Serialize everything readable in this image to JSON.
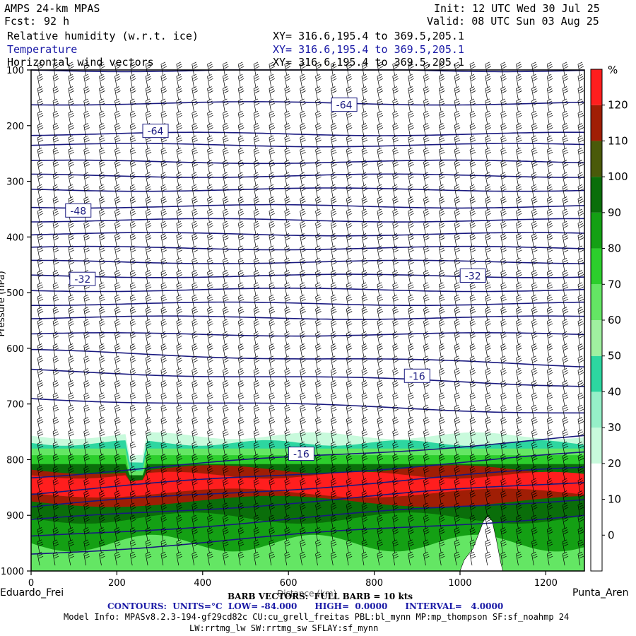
{
  "header": {
    "model": "AMPS 24-km MPAS",
    "fcst_label": "Fcst:",
    "fcst_value": "92 h",
    "init": "Init: 12 UTC Wed 30 Jul 25",
    "valid": "Valid: 08 UTC Sun 03 Aug 25",
    "fields": [
      {
        "name": "Relative humidity (w.r.t. ice)",
        "xy": "XY= 316.6,195.4 to 369.5,205.1",
        "color": "#000000"
      },
      {
        "name": "Temperature",
        "xy": "XY= 316.6,195.4 to 369.5,205.1",
        "color": "#1a1aa6"
      },
      {
        "name": "Horizontal wind vectors",
        "xy": "XY= 316.6,195.4 to 369.5,205.1",
        "color": "#000000"
      }
    ]
  },
  "footer": {
    "barb": "BARB VECTORS:  FULL BARB = 10 kts",
    "x_title": "Distance (km)",
    "contours": "CONTOURS:  UNITS=°C  LOW= -84.000      HIGH=  0.0000      INTERVAL=   4.0000",
    "model_info": "Model Info: MPASv8.2.3-194-gf29cd82c CU:cu_grell_freitas PBL:bl_mynn MP:mp_thompson SF:sf_noahmp 24",
    "model_info2": "LW:rrtmg_lw SW:rrtmg_sw SFLAY:sf_mynn",
    "left_end": "Eduardo_Frei",
    "right_end": "Punta_Aren",
    "y_title": "Pressure (hPa)"
  },
  "colorbar": {
    "unit": "%",
    "levels": [
      0,
      10,
      20,
      30,
      40,
      50,
      60,
      70,
      80,
      90,
      100,
      110,
      120
    ],
    "colors": [
      "#ffffff",
      "#ffffff",
      "#ffffff",
      "#c8fadc",
      "#96f0c8",
      "#2dd6a0",
      "#a0f0a0",
      "#64e664",
      "#2cce2c",
      "#14a014",
      "#0a6e0a",
      "#4a5a0a",
      "#a01e05",
      "#ff1e1e"
    ]
  },
  "chart_data": {
    "type": "heatmap",
    "title": "Relative humidity (w.r.t. ice), Temperature, Horizontal wind vectors",
    "x": [
      0,
      200,
      400,
      600,
      800,
      1000,
      1200
    ],
    "xlim": [
      0,
      1290
    ],
    "y_ticks": [
      100,
      200,
      300,
      400,
      500,
      600,
      700,
      800,
      900,
      1000
    ],
    "ylim": [
      100,
      1000
    ],
    "temperature_labels": [
      {
        "text": "-64",
        "x": 290,
        "p": 210
      },
      {
        "text": "-64",
        "x": 730,
        "p": 163
      },
      {
        "text": "-48",
        "x": 110,
        "p": 353
      },
      {
        "text": "-32",
        "x": 120,
        "p": 476
      },
      {
        "text": "-32",
        "x": 1030,
        "p": 470
      },
      {
        "text": "-16",
        "x": 900,
        "p": 650
      },
      {
        "text": "-16",
        "x": 630,
        "p": 790
      }
    ],
    "temperature_contour_pressures": [
      100,
      160,
      215,
      235,
      265,
      290,
      315,
      345,
      370,
      395,
      420,
      445,
      470,
      495,
      520,
      545,
      575,
      605,
      640,
      690,
      830,
      860,
      885,
      910,
      940,
      970
    ]
  }
}
